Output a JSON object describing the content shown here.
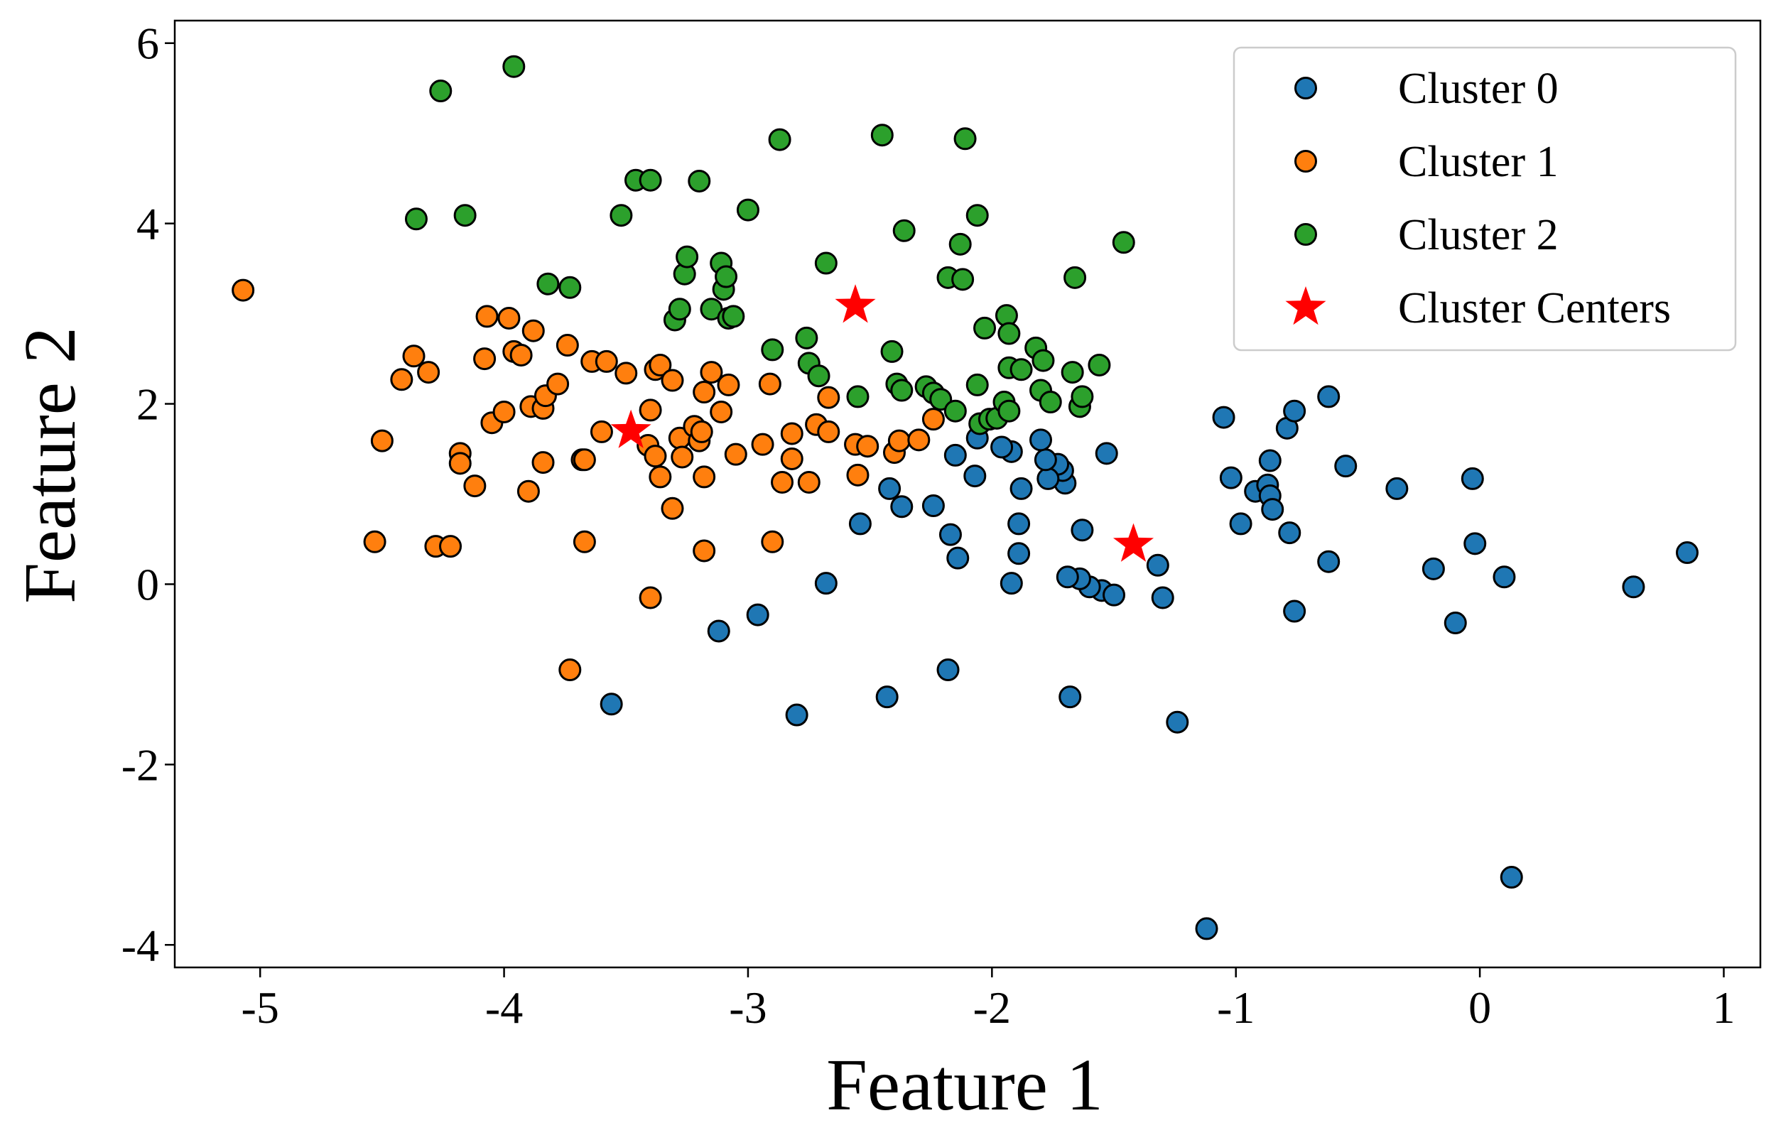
{
  "chart_data": {
    "type": "scatter",
    "title": "",
    "xlabel": "Feature 1",
    "ylabel": "Feature 2",
    "xlim": [
      -5.35,
      1.15
    ],
    "ylim": [
      -4.25,
      6.25
    ],
    "xticks": [
      -5,
      -4,
      -3,
      -2,
      -1,
      0,
      1
    ],
    "xtick_labels": [
      "-5",
      "-4",
      "-3",
      "-2",
      "-1",
      "0",
      "1"
    ],
    "yticks": [
      -4,
      -2,
      0,
      2,
      4,
      6
    ],
    "ytick_labels": [
      "-4",
      "-2",
      "0",
      "2",
      "4",
      "6"
    ],
    "grid": false,
    "legend_position": "top-right",
    "series": [
      {
        "name": "Cluster 0",
        "color": "#1f77b4",
        "marker": "circle",
        "points": [
          [
            -1.05,
            1.85
          ],
          [
            -1.02,
            1.18
          ],
          [
            -0.98,
            0.67
          ],
          [
            -0.92,
            1.03
          ],
          [
            -0.87,
            1.1
          ],
          [
            -0.86,
            1.37
          ],
          [
            -0.86,
            0.98
          ],
          [
            -0.85,
            0.83
          ],
          [
            -0.79,
            1.73
          ],
          [
            -0.78,
            0.57
          ],
          [
            -0.76,
            1.92
          ],
          [
            -0.76,
            -0.3
          ],
          [
            -0.62,
            2.08
          ],
          [
            -0.62,
            0.25
          ],
          [
            -0.55,
            1.31
          ],
          [
            -0.34,
            1.06
          ],
          [
            -0.19,
            0.17
          ],
          [
            -0.1,
            -0.43
          ],
          [
            -0.03,
            1.17
          ],
          [
            -0.02,
            0.45
          ],
          [
            0.1,
            0.08
          ],
          [
            0.13,
            -3.25
          ],
          [
            0.63,
            -0.03
          ],
          [
            0.85,
            0.35
          ],
          [
            -1.12,
            -3.82
          ],
          [
            -1.24,
            -1.53
          ],
          [
            -1.3,
            -0.15
          ],
          [
            -1.32,
            0.21
          ],
          [
            -1.53,
            1.45
          ],
          [
            -1.55,
            -0.07
          ],
          [
            -1.6,
            -0.03
          ],
          [
            -1.5,
            -0.12
          ],
          [
            -1.63,
            0.6
          ],
          [
            -1.64,
            0.06
          ],
          [
            -1.68,
            -1.25
          ],
          [
            -1.69,
            0.08
          ],
          [
            -1.7,
            1.12
          ],
          [
            -1.71,
            1.26
          ],
          [
            -1.73,
            1.33
          ],
          [
            -1.77,
            1.17
          ],
          [
            -1.78,
            1.38
          ],
          [
            -1.8,
            1.6
          ],
          [
            -1.88,
            1.06
          ],
          [
            -1.89,
            0.67
          ],
          [
            -1.89,
            0.34
          ],
          [
            -1.92,
            0.01
          ],
          [
            -1.92,
            1.47
          ],
          [
            -1.96,
            1.52
          ],
          [
            -2.06,
            1.62
          ],
          [
            -2.07,
            1.2
          ],
          [
            -2.14,
            0.29
          ],
          [
            -2.15,
            1.43
          ],
          [
            -2.17,
            0.55
          ],
          [
            -2.18,
            -0.95
          ],
          [
            -2.24,
            0.87
          ],
          [
            -2.37,
            0.86
          ],
          [
            -2.42,
            1.06
          ],
          [
            -2.43,
            -1.25
          ],
          [
            -2.54,
            0.67
          ],
          [
            -2.68,
            0.01
          ],
          [
            -2.8,
            -1.45
          ],
          [
            -2.96,
            -0.34
          ],
          [
            -3.12,
            -0.52
          ],
          [
            -3.56,
            -1.33
          ]
        ]
      },
      {
        "name": "Cluster 1",
        "color": "#ff7f0e",
        "marker": "circle",
        "points": [
          [
            -5.07,
            3.26
          ],
          [
            -4.53,
            0.47
          ],
          [
            -4.5,
            1.59
          ],
          [
            -4.42,
            2.27
          ],
          [
            -4.37,
            2.53
          ],
          [
            -4.31,
            2.35
          ],
          [
            -4.28,
            0.42
          ],
          [
            -4.22,
            0.42
          ],
          [
            -4.18,
            1.45
          ],
          [
            -4.18,
            1.34
          ],
          [
            -4.12,
            1.09
          ],
          [
            -4.08,
            2.5
          ],
          [
            -4.07,
            2.97
          ],
          [
            -4.05,
            1.79
          ],
          [
            -4.0,
            1.91
          ],
          [
            -3.98,
            2.95
          ],
          [
            -3.96,
            2.58
          ],
          [
            -3.93,
            2.54
          ],
          [
            -3.9,
            1.03
          ],
          [
            -3.89,
            1.97
          ],
          [
            -3.88,
            2.81
          ],
          [
            -3.84,
            1.95
          ],
          [
            -3.83,
            2.09
          ],
          [
            -3.84,
            1.35
          ],
          [
            -3.78,
            2.22
          ],
          [
            -3.74,
            2.65
          ],
          [
            -3.73,
            -0.95
          ],
          [
            -3.68,
            1.38
          ],
          [
            -3.67,
            1.38
          ],
          [
            -3.67,
            0.47
          ],
          [
            -3.64,
            2.47
          ],
          [
            -3.58,
            2.47
          ],
          [
            -3.6,
            1.69
          ],
          [
            -3.5,
            2.34
          ],
          [
            -3.41,
            1.54
          ],
          [
            -3.4,
            1.93
          ],
          [
            -3.4,
            -0.15
          ],
          [
            -3.38,
            2.38
          ],
          [
            -3.38,
            1.42
          ],
          [
            -3.36,
            2.43
          ],
          [
            -3.36,
            1.19
          ],
          [
            -3.31,
            2.26
          ],
          [
            -3.31,
            0.84
          ],
          [
            -3.28,
            1.62
          ],
          [
            -3.27,
            1.41
          ],
          [
            -3.22,
            1.75
          ],
          [
            -3.2,
            1.59
          ],
          [
            -3.19,
            1.69
          ],
          [
            -3.18,
            2.13
          ],
          [
            -3.18,
            1.19
          ],
          [
            -3.18,
            0.37
          ],
          [
            -3.15,
            2.35
          ],
          [
            -3.11,
            1.91
          ],
          [
            -3.08,
            2.21
          ],
          [
            -3.05,
            1.44
          ],
          [
            -2.94,
            1.55
          ],
          [
            -2.91,
            2.22
          ],
          [
            -2.9,
            0.47
          ],
          [
            -2.86,
            1.13
          ],
          [
            -2.82,
            1.67
          ],
          [
            -2.82,
            1.39
          ],
          [
            -2.75,
            1.13
          ],
          [
            -2.72,
            1.77
          ],
          [
            -2.67,
            1.69
          ],
          [
            -2.67,
            2.07
          ],
          [
            -2.56,
            1.55
          ],
          [
            -2.55,
            1.21
          ],
          [
            -2.51,
            1.53
          ],
          [
            -2.4,
            1.46
          ],
          [
            -2.38,
            1.59
          ],
          [
            -2.3,
            1.6
          ],
          [
            -2.24,
            1.83
          ]
        ]
      },
      {
        "name": "Cluster 2",
        "color": "#2ca02c",
        "marker": "circle",
        "points": [
          [
            -4.26,
            5.47
          ],
          [
            -3.96,
            5.74
          ],
          [
            -4.36,
            4.05
          ],
          [
            -4.16,
            4.09
          ],
          [
            -3.82,
            3.33
          ],
          [
            -3.73,
            3.29
          ],
          [
            -3.52,
            4.09
          ],
          [
            -3.46,
            4.48
          ],
          [
            -3.4,
            4.48
          ],
          [
            -3.2,
            4.47
          ],
          [
            -3.3,
            2.93
          ],
          [
            -3.28,
            3.05
          ],
          [
            -3.26,
            3.44
          ],
          [
            -3.25,
            3.63
          ],
          [
            -3.15,
            3.05
          ],
          [
            -3.11,
            3.56
          ],
          [
            -3.1,
            3.27
          ],
          [
            -3.09,
            3.41
          ],
          [
            -3.08,
            2.95
          ],
          [
            -3.06,
            2.97
          ],
          [
            -3.0,
            4.15
          ],
          [
            -2.9,
            2.6
          ],
          [
            -2.87,
            4.93
          ],
          [
            -2.76,
            2.73
          ],
          [
            -2.75,
            2.45
          ],
          [
            -2.71,
            2.31
          ],
          [
            -2.68,
            3.56
          ],
          [
            -2.55,
            2.08
          ],
          [
            -2.45,
            4.98
          ],
          [
            -2.41,
            2.58
          ],
          [
            -2.39,
            2.22
          ],
          [
            -2.37,
            2.15
          ],
          [
            -2.36,
            3.92
          ],
          [
            -2.27,
            2.19
          ],
          [
            -2.24,
            2.12
          ],
          [
            -2.21,
            2.05
          ],
          [
            -2.18,
            3.4
          ],
          [
            -2.15,
            1.92
          ],
          [
            -2.13,
            3.77
          ],
          [
            -2.12,
            3.38
          ],
          [
            -2.11,
            4.94
          ],
          [
            -2.06,
            4.09
          ],
          [
            -2.06,
            2.21
          ],
          [
            -2.05,
            1.78
          ],
          [
            -2.03,
            2.84
          ],
          [
            -2.01,
            1.83
          ],
          [
            -1.98,
            1.84
          ],
          [
            -1.95,
            2.02
          ],
          [
            -1.94,
            2.98
          ],
          [
            -1.93,
            2.4
          ],
          [
            -1.93,
            2.78
          ],
          [
            -1.93,
            1.92
          ],
          [
            -1.88,
            2.38
          ],
          [
            -1.82,
            2.62
          ],
          [
            -1.8,
            2.15
          ],
          [
            -1.79,
            2.48
          ],
          [
            -1.76,
            2.02
          ],
          [
            -1.67,
            2.35
          ],
          [
            -1.66,
            3.4
          ],
          [
            -1.64,
            1.97
          ],
          [
            -1.63,
            2.08
          ],
          [
            -1.56,
            2.43
          ],
          [
            -1.46,
            3.79
          ]
        ]
      },
      {
        "name": "Cluster Centers",
        "color": "#ff0000",
        "marker": "star",
        "points": [
          [
            -3.48,
            1.7
          ],
          [
            -2.56,
            3.09
          ],
          [
            -1.42,
            0.44
          ]
        ]
      }
    ]
  }
}
